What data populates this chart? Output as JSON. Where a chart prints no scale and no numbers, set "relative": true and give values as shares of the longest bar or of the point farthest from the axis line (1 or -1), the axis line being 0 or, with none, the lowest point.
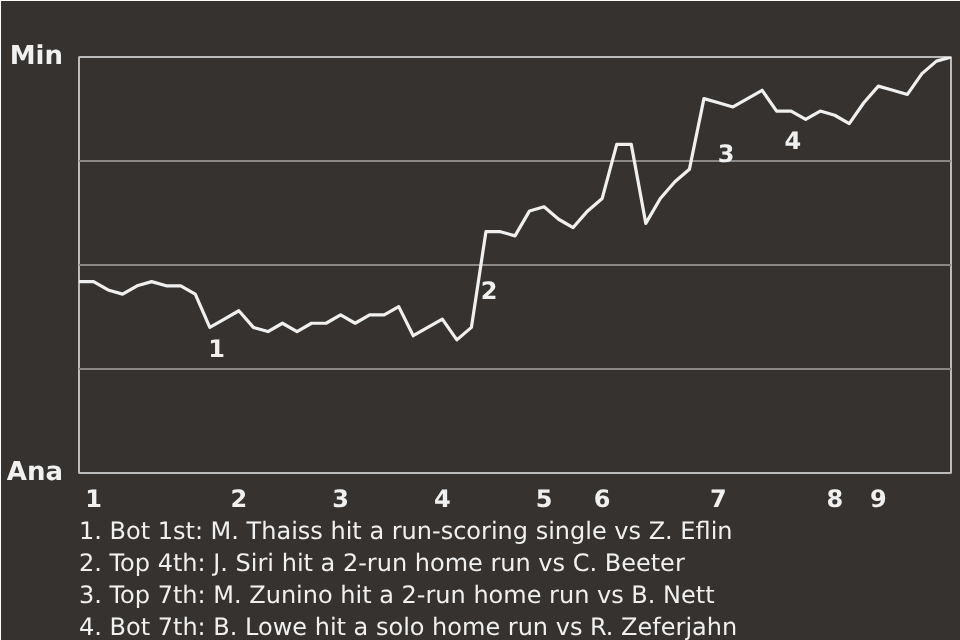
{
  "chart_data": {
    "type": "line",
    "relative": true,
    "categories": [
      null,
      "1",
      null,
      null,
      null,
      null,
      null,
      null,
      null,
      null,
      null,
      "2",
      null,
      null,
      null,
      null,
      null,
      null,
      "3",
      null,
      null,
      null,
      null,
      null,
      null,
      "4",
      null,
      null,
      null,
      null,
      null,
      null,
      "5",
      null,
      null,
      null,
      "6",
      null,
      null,
      null,
      null,
      null,
      null,
      null,
      "7",
      null,
      null,
      null,
      null,
      null,
      null,
      null,
      "8",
      null,
      null,
      "9",
      null,
      null,
      null,
      null,
      null
    ],
    "series": [
      {
        "color": "#f0f0f0",
        "values": [
          0.46,
          0.46,
          0.44,
          0.43,
          0.45,
          0.46,
          0.45,
          0.45,
          0.43,
          0.35,
          0.37,
          0.39,
          0.35,
          0.34,
          0.36,
          0.34,
          0.36,
          0.36,
          0.38,
          0.36,
          0.38,
          0.38,
          0.4,
          0.33,
          0.35,
          0.37,
          0.32,
          0.35,
          0.58,
          0.58,
          0.57,
          0.63,
          0.64,
          0.61,
          0.59,
          0.63,
          0.66,
          0.79,
          0.79,
          0.6,
          0.66,
          0.7,
          0.73,
          0.9,
          0.89,
          0.88,
          0.9,
          0.92,
          0.87,
          0.87,
          0.85,
          0.87,
          0.86,
          0.84,
          0.89,
          0.93,
          0.92,
          0.91,
          0.96,
          0.99,
          1.0
        ]
      }
    ],
    "grid": "y",
    "marker": "none",
    "line_style": "solid",
    "annotations": [
      "Min",
      "Ana",
      "1",
      "2",
      "3",
      "4",
      "1. Bot 1st: M. Thaiss hit a run-scoring single vs Z. Eflin",
      "2. Top 4th: J. Siri hit a 2-run home run vs C. Beeter",
      "3. Top 7th: M. Zunino hit a 2-run home run vs B. Nett",
      "4. Bot 7th: B. Lowe hit a solo home run vs R. Zeferjahn"
    ]
  }
}
